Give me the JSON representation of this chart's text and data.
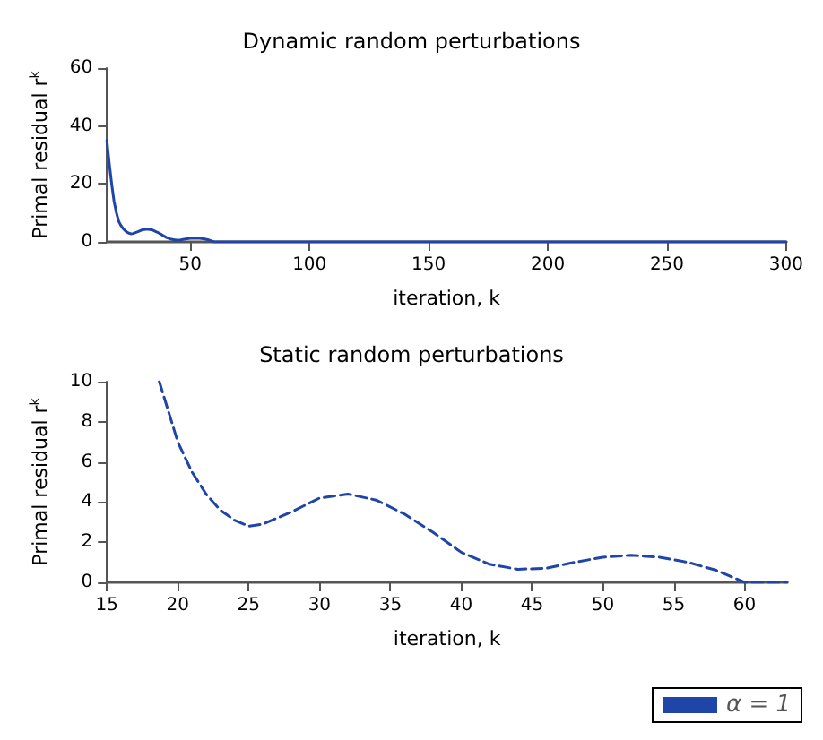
{
  "chart_data": [
    {
      "type": "line",
      "title": "Dynamic random perturbations",
      "xlabel": "iteration, k",
      "ylabel": "Primal residual r$^{k}$",
      "xlim": [
        15,
        300
      ],
      "ylim": [
        0,
        60
      ],
      "xticks": [
        50,
        100,
        150,
        200,
        250,
        300
      ],
      "yticks": [
        0,
        20,
        40,
        60
      ],
      "grid": false,
      "line_style": "solid",
      "marker": "none",
      "series": [
        {
          "color": "#1f45a8",
          "x": [
            15,
            16,
            17,
            18,
            19,
            20,
            21,
            22,
            23,
            24,
            25,
            26,
            28,
            30,
            32,
            34,
            36,
            38,
            40,
            42,
            44,
            46,
            48,
            50,
            52,
            54,
            56,
            58,
            60,
            100,
            150,
            200,
            250,
            300
          ],
          "values": [
            35,
            27,
            20,
            14,
            10,
            7,
            5.5,
            4.4,
            3.6,
            3.1,
            2.8,
            2.9,
            3.5,
            4.2,
            4.4,
            4.1,
            3.4,
            2.5,
            1.5,
            0.9,
            0.65,
            0.7,
            1,
            1.25,
            1.35,
            1.25,
            1,
            0.6,
            0,
            0,
            0,
            0,
            0,
            0
          ]
        }
      ]
    },
    {
      "type": "line",
      "title": "Static random perturbations",
      "xlabel": "iteration, k",
      "ylabel": "Primal residual r$^{k}$",
      "xlim": [
        15,
        63
      ],
      "ylim": [
        0,
        10
      ],
      "xticks": [
        15,
        20,
        25,
        30,
        35,
        40,
        45,
        50,
        55,
        60
      ],
      "yticks": [
        0,
        2,
        4,
        6,
        8,
        10
      ],
      "grid": false,
      "line_style": "dashed",
      "marker": "none",
      "legend": "bottom right",
      "series": [
        {
          "name": "α = 1",
          "color": "#1f45a8",
          "x": [
            18.7,
            20,
            21,
            22,
            23,
            24,
            25,
            26,
            28,
            30,
            32,
            34,
            36,
            38,
            40,
            42,
            44,
            46,
            48,
            50,
            52,
            54,
            56,
            58,
            60,
            61,
            63
          ],
          "values": [
            10,
            7,
            5.5,
            4.4,
            3.6,
            3.1,
            2.8,
            2.9,
            3.5,
            4.2,
            4.4,
            4.1,
            3.4,
            2.5,
            1.5,
            0.9,
            0.65,
            0.7,
            1,
            1.25,
            1.35,
            1.25,
            1,
            0.6,
            0,
            0,
            0
          ]
        }
      ]
    }
  ]
}
